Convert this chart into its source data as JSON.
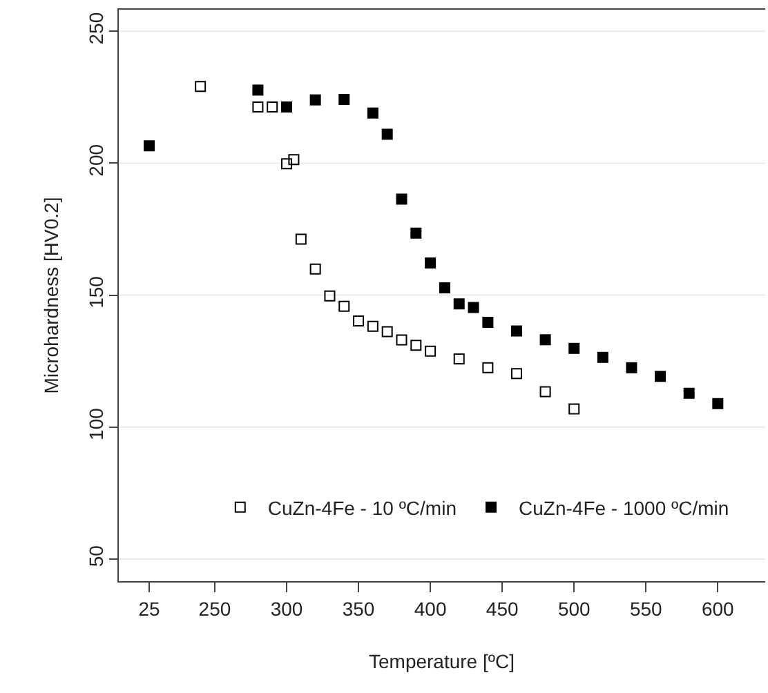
{
  "chart_data": [
    {
      "type": "scatter",
      "marker": "square",
      "grid": "y",
      "tick_labels": "x",
      "categories": [
        "25"
      ],
      "ylim": [
        41.6,
        258.2
      ],
      "yticks": [
        50,
        100,
        150,
        200,
        250
      ],
      "series": [
        {
          "color": "#000000",
          "values": [
            206.6
          ]
        }
      ]
    },
    {
      "type": "scatter",
      "xlabel": "Temperature [ºC]",
      "ylabel": "Microhardness [HV0.2]",
      "marker": "square",
      "grid": "y",
      "legend": "bottom",
      "xlim": [
        225.5,
        633
      ],
      "xticks": [
        250,
        300,
        350,
        400,
        450,
        500,
        550,
        600
      ],
      "ylim": [
        41.6,
        258.2
      ],
      "yticks": [
        50,
        100,
        150,
        200,
        250
      ],
      "series": [
        {
          "name": "CuZn-4Fe - 10 ºC/min",
          "color": "#000000",
          "marker": "square-open",
          "x": [
            240,
            280,
            290,
            300,
            305,
            310,
            320,
            330,
            340,
            350,
            360,
            370,
            380,
            390,
            400,
            420,
            440,
            460,
            480,
            500
          ],
          "values": [
            229.1,
            221.3,
            221.3,
            199.8,
            201.4,
            171.2,
            159.9,
            149.7,
            145.8,
            140.2,
            138.2,
            136.2,
            133,
            131,
            128.8,
            125.8,
            122.5,
            120.3,
            113.4,
            106.9
          ]
        },
        {
          "name": "CuZn-4Fe - 1000 ºC/min",
          "color": "#000000",
          "x": [
            280,
            300,
            320,
            340,
            360,
            370,
            380,
            390,
            400,
            410,
            420,
            430,
            440,
            460,
            480,
            500,
            520,
            540,
            560,
            580,
            600
          ],
          "values": [
            227.7,
            221.3,
            224.0,
            224.2,
            219.0,
            211.0,
            186.4,
            173.5,
            162.2,
            152.8,
            146.7,
            145.3,
            139.7,
            136.4,
            133.1,
            129.8,
            126.4,
            122.5,
            119.2,
            112.8,
            108.9
          ]
        }
      ]
    }
  ]
}
